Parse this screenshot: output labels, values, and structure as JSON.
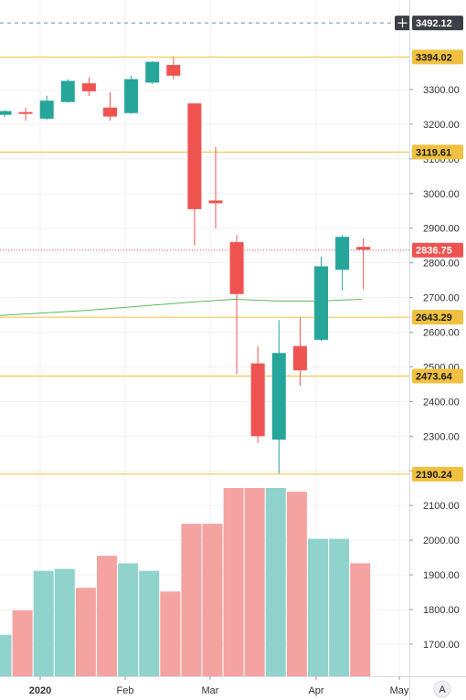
{
  "chart_data": {
    "type": "candlestick",
    "x_tick_labels": [
      "2020",
      "Feb",
      "Mar",
      "Apr",
      "May"
    ],
    "y_tick_labels": [
      "3300.00",
      "3200.00",
      "3100.00",
      "3000.00",
      "2900.00",
      "2800.00",
      "2700.00",
      "2600.00",
      "2500.00",
      "2400.00",
      "2300.00",
      "2200.00",
      "2100.00",
      "2000.00",
      "1900.00",
      "1800.00",
      "1700.00"
    ],
    "ylim": [
      1640,
      3550
    ],
    "colors": {
      "up": "#26a69a",
      "down": "#ef5350",
      "volume_up": "#8fd3cc",
      "volume_down": "#f5a3a1",
      "level": "#f0c040",
      "ma": "#5cb85c"
    },
    "candles": [
      {
        "o": 3227,
        "h": 3240,
        "l": 3220,
        "c": 3238
      },
      {
        "o": 3235,
        "h": 3248,
        "l": 3210,
        "c": 3232
      },
      {
        "o": 3216,
        "h": 3282,
        "l": 3212,
        "c": 3268
      },
      {
        "o": 3264,
        "h": 3330,
        "l": 3262,
        "c": 3325
      },
      {
        "o": 3318,
        "h": 3335,
        "l": 3282,
        "c": 3295
      },
      {
        "o": 3248,
        "h": 3292,
        "l": 3210,
        "c": 3222
      },
      {
        "o": 3232,
        "h": 3340,
        "l": 3230,
        "c": 3330
      },
      {
        "o": 3320,
        "h": 3382,
        "l": 3316,
        "c": 3380
      },
      {
        "o": 3371,
        "h": 3394,
        "l": 3330,
        "c": 3340
      },
      {
        "o": 3260,
        "h": 3260,
        "l": 2850,
        "c": 2955
      },
      {
        "o": 2980,
        "h": 3135,
        "l": 2900,
        "c": 2972
      },
      {
        "o": 2860,
        "h": 2880,
        "l": 2478,
        "c": 2710
      },
      {
        "o": 2510,
        "h": 2560,
        "l": 2280,
        "c": 2300
      },
      {
        "o": 2290,
        "h": 2635,
        "l": 2192,
        "c": 2540
      },
      {
        "o": 2560,
        "h": 2642,
        "l": 2445,
        "c": 2490
      },
      {
        "o": 2578,
        "h": 2818,
        "l": 2575,
        "c": 2790
      },
      {
        "o": 2780,
        "h": 2880,
        "l": 2720,
        "c": 2875
      },
      {
        "o": 2846,
        "h": 2870,
        "l": 2724,
        "c": 2838
      }
    ],
    "volume_heights": [
      0.22,
      0.35,
      0.56,
      0.57,
      0.47,
      0.64,
      0.6,
      0.56,
      0.45,
      0.81,
      0.81,
      1.0,
      1.0,
      1.0,
      0.98,
      0.73,
      0.73,
      0.6
    ],
    "volume_up": [
      true,
      false,
      true,
      true,
      false,
      false,
      true,
      true,
      false,
      false,
      false,
      false,
      false,
      true,
      false,
      true,
      true,
      false
    ],
    "levels": [
      {
        "value": 3394.02,
        "label": "3394.02"
      },
      {
        "value": 3119.61,
        "label": "3119.61"
      },
      {
        "value": 2643.29,
        "label": "2643.29"
      },
      {
        "value": 2473.64,
        "label": "2473.64"
      },
      {
        "value": 2190.24,
        "label": "2190.24"
      }
    ],
    "last_price": {
      "value": 2836.75,
      "label": "2836.75"
    },
    "crosshair_price": {
      "value": 3492.12,
      "label": "3492.12"
    },
    "moving_average": [
      {
        "i": -1,
        "v": 2645
      },
      {
        "i": 4,
        "v": 2663
      },
      {
        "i": 9,
        "v": 2687
      },
      {
        "i": 11,
        "v": 2695
      },
      {
        "i": 13,
        "v": 2690
      },
      {
        "i": 15,
        "v": 2690
      },
      {
        "i": 17,
        "v": 2695
      }
    ],
    "axis_badge": "A"
  }
}
